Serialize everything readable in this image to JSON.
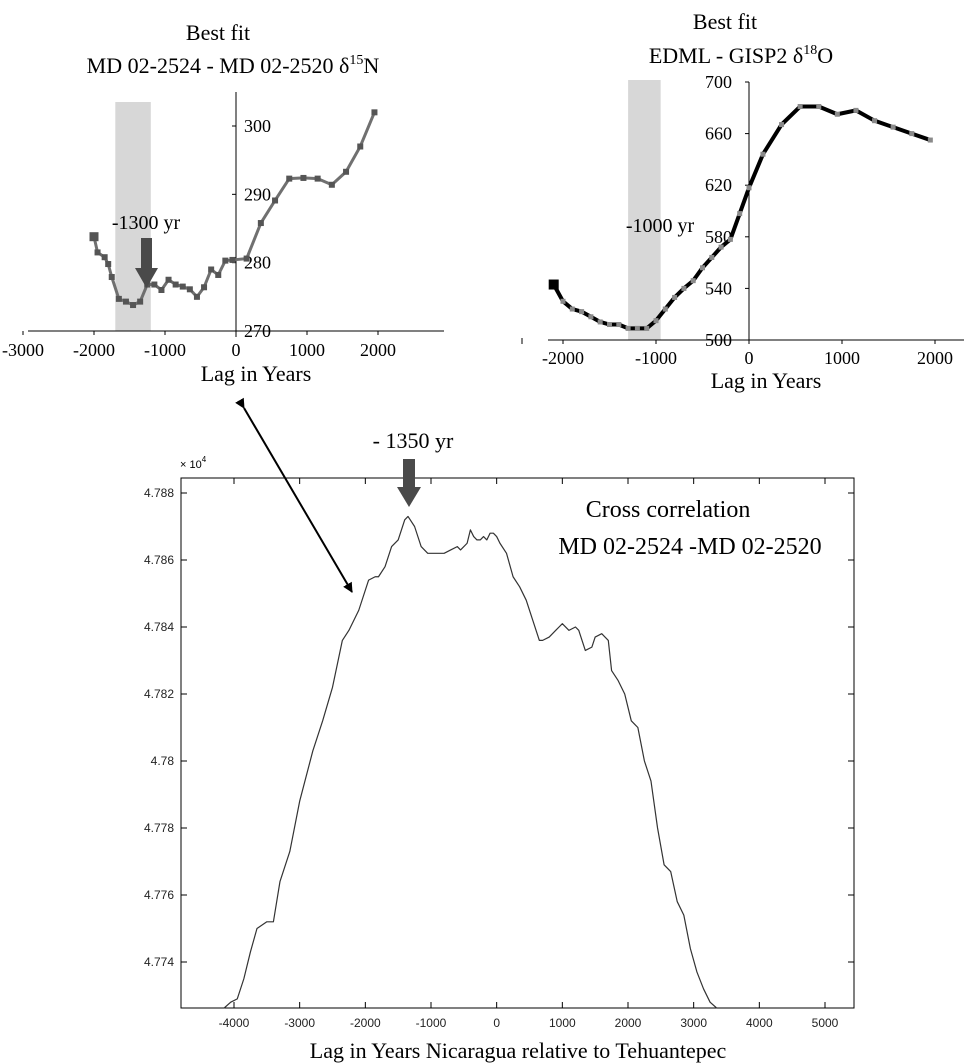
{
  "chart_data": [
    {
      "type": "line",
      "title_line1": "Best fit",
      "title_line2_parts": [
        "MD 02-2524 - MD 02-2520 δ",
        "15",
        "N"
      ],
      "xlabel": "Lag in Years",
      "ylabel": "",
      "x_ticks": [
        "-3000",
        "-2000",
        "-1000",
        "0",
        "1000",
        "2000"
      ],
      "y_ticks": [
        "270",
        "280",
        "290",
        "300"
      ],
      "xlim": [
        -3000,
        3000
      ],
      "ylim": [
        270,
        305
      ],
      "shaded_band": [
        -1700,
        -1200
      ],
      "annotation": {
        "text": "-1300 yr",
        "x": -1300
      },
      "series": [
        {
          "color": "#707070",
          "x": [
            -2000,
            -1950,
            -1850,
            -1800,
            -1750,
            -1650,
            -1550,
            -1450,
            -1350,
            -1250,
            -1150,
            -1050,
            -950,
            -850,
            -750,
            -650,
            -550,
            -450,
            -350,
            -250,
            -150,
            -50,
            150,
            350,
            550,
            750,
            950,
            1150,
            1350,
            1550,
            1750,
            1950
          ],
          "y": [
            283.8,
            281.5,
            280.8,
            279.8,
            277.9,
            274.7,
            274.3,
            273.8,
            274.3,
            276.8,
            276.8,
            276.0,
            277.5,
            276.8,
            276.5,
            276.1,
            275.0,
            276.4,
            279.0,
            278.2,
            280.3,
            280.4,
            280.6,
            285.8,
            289.1,
            292.3,
            292.4,
            292.3,
            291.4,
            293.3,
            297.0,
            302.0
          ]
        }
      ]
    },
    {
      "type": "line",
      "title_line1": "Best fit",
      "title_line2_parts": [
        "EDML - GISP2 δ",
        "18",
        "O"
      ],
      "xlabel": "Lag in Years",
      "ylabel": "",
      "x_ticks": [
        "-2000",
        "-1000",
        "0",
        "1000",
        "2000"
      ],
      "y_ticks": [
        "500",
        "540",
        "580",
        "620",
        "660",
        "700"
      ],
      "xlim": [
        -2500,
        2250
      ],
      "ylim": [
        500,
        700
      ],
      "shaded_band": [
        -1300,
        -950
      ],
      "annotation": {
        "text": "-1000 yr",
        "x": -1000
      },
      "series": [
        {
          "color": "#000000",
          "x": [
            -2100,
            -2000,
            -1900,
            -1800,
            -1700,
            -1600,
            -1500,
            -1400,
            -1300,
            -1200,
            -1100,
            -1000,
            -900,
            -800,
            -700,
            -600,
            -500,
            -400,
            -300,
            -200,
            -100,
            0,
            150,
            350,
            550,
            750,
            950,
            1150,
            1350,
            1550,
            1750,
            1950
          ],
          "y": [
            543,
            530,
            524,
            522,
            518,
            514,
            512,
            512,
            509,
            509,
            509,
            515,
            524,
            533,
            540,
            546,
            556,
            564,
            572,
            578,
            598,
            618,
            644,
            667,
            681,
            681,
            675,
            678,
            670,
            665,
            660,
            655
          ]
        }
      ]
    },
    {
      "type": "line",
      "title_line1": "Cross correlation",
      "title_line2": "MD 02-2524 -MD 02-2520",
      "xlabel": "Lag in Years Nicaragua relative to Tehuantepec",
      "ylabel": "",
      "y_multiplier": "× 10",
      "y_multiplier_exp": "4",
      "x_ticks": [
        "-4000",
        "-3000",
        "-2000",
        "-1000",
        "0",
        "1000",
        "2000",
        "3000",
        "4000",
        "5000"
      ],
      "y_ticks": [
        "4.774",
        "4.776",
        "4.778",
        "4.78",
        "4.782",
        "4.784",
        "4.786",
        "4.788"
      ],
      "xlim": [
        -4800,
        5200
      ],
      "ylim": [
        4.7723,
        4.7887
      ],
      "annotation": {
        "text": "- 1350 yr",
        "x": -1350
      },
      "series": [
        {
          "color": "#333333",
          "x": [
            -4150,
            -4050,
            -3950,
            -3850,
            -3750,
            -3650,
            -3500,
            -3400,
            -3300,
            -3150,
            -3000,
            -2800,
            -2650,
            -2500,
            -2350,
            -2250,
            -2100,
            -1950,
            -1850,
            -1800,
            -1700,
            -1600,
            -1500,
            -1400,
            -1350,
            -1250,
            -1150,
            -1050,
            -900,
            -800,
            -700,
            -600,
            -550,
            -450,
            -400,
            -350,
            -300,
            -250,
            -200,
            -150,
            -100,
            -50,
            0,
            50,
            150,
            250,
            350,
            450,
            550,
            650,
            700,
            800,
            900,
            950,
            1000,
            1100,
            1200,
            1250,
            1350,
            1450,
            1500,
            1600,
            1700,
            1750,
            1850,
            1950,
            2050,
            2150,
            2250,
            2350,
            2450,
            2550,
            2650,
            2750,
            2850,
            2950,
            3050,
            3150,
            3250,
            3350,
            3450,
            3550,
            3650,
            3750,
            3800,
            3850
          ],
          "y": [
            4.7723,
            4.7728,
            4.7729,
            4.7735,
            4.7743,
            4.775,
            4.7752,
            4.7752,
            4.7764,
            4.7773,
            4.7788,
            4.7803,
            4.7812,
            4.7822,
            4.7836,
            4.7839,
            4.7845,
            4.7854,
            4.7855,
            4.7855,
            4.7858,
            4.7864,
            4.7866,
            4.7872,
            4.7873,
            4.787,
            4.7864,
            4.7862,
            4.7862,
            4.7862,
            4.7863,
            4.7864,
            4.7863,
            4.7865,
            4.7869,
            4.7867,
            4.7866,
            4.7866,
            4.7867,
            4.7866,
            4.7868,
            4.7868,
            4.7867,
            4.7865,
            4.7862,
            4.7855,
            4.7852,
            4.7848,
            4.7842,
            4.7836,
            4.7836,
            4.7837,
            4.7839,
            4.784,
            4.7841,
            4.7839,
            4.784,
            4.7839,
            4.7833,
            4.7834,
            4.7837,
            4.7838,
            4.7836,
            4.7827,
            4.7824,
            4.782,
            4.7812,
            4.781,
            4.78,
            4.7794,
            4.778,
            4.7769,
            4.7767,
            4.7758,
            4.7754,
            4.7744,
            4.7737,
            4.7732,
            4.7728,
            4.7724,
            4.7723,
            4.7725,
            4.7724,
            4.7722,
            4.7723,
            4.7722
          ]
        }
      ]
    }
  ]
}
